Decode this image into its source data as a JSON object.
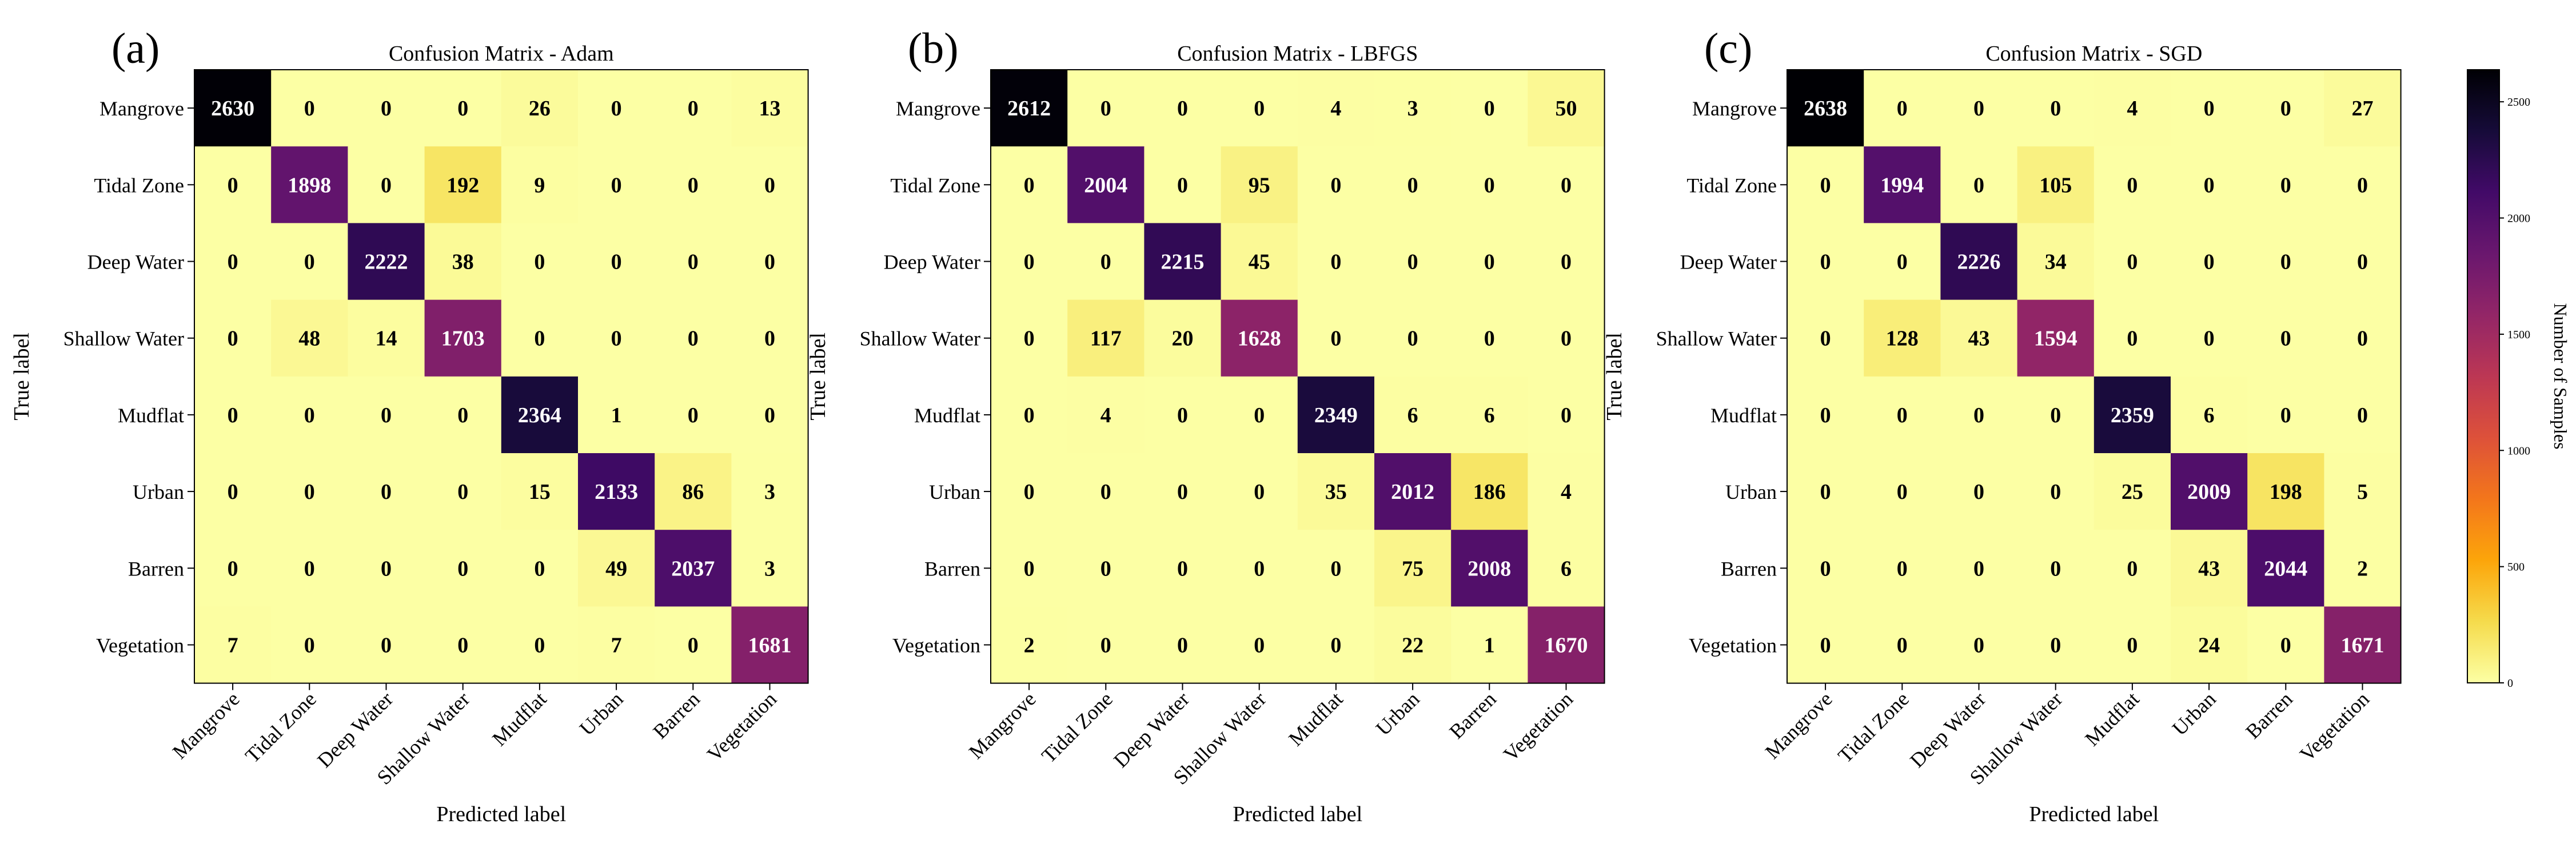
{
  "chart_data": [
    {
      "type": "heatmap",
      "panel_label": "(a)",
      "title": "Confusion Matrix - Adam",
      "xlabel": "Predicted label",
      "ylabel": "True label",
      "row_labels": [
        "Mangrove",
        "Tidal Zone",
        "Deep Water",
        "Shallow Water",
        "Mudflat",
        "Urban",
        "Barren",
        "Vegetation"
      ],
      "col_labels": [
        "Mangrove",
        "Tidal Zone",
        "Deep Water",
        "Shallow Water",
        "Mudflat",
        "Urban",
        "Barren",
        "Vegetation"
      ],
      "matrix": [
        [
          2630,
          0,
          0,
          0,
          26,
          0,
          0,
          13
        ],
        [
          0,
          1898,
          0,
          192,
          9,
          0,
          0,
          0
        ],
        [
          0,
          0,
          2222,
          38,
          0,
          0,
          0,
          0
        ],
        [
          0,
          48,
          14,
          1703,
          0,
          0,
          0,
          0
        ],
        [
          0,
          0,
          0,
          0,
          2364,
          1,
          0,
          0
        ],
        [
          0,
          0,
          0,
          0,
          15,
          2133,
          86,
          3
        ],
        [
          0,
          0,
          0,
          0,
          0,
          49,
          2037,
          3
        ],
        [
          7,
          0,
          0,
          0,
          0,
          7,
          0,
          1681
        ]
      ]
    },
    {
      "type": "heatmap",
      "panel_label": "(b)",
      "title": "Confusion Matrix - LBFGS",
      "xlabel": "Predicted label",
      "ylabel": "True label",
      "row_labels": [
        "Mangrove",
        "Tidal Zone",
        "Deep Water",
        "Shallow Water",
        "Mudflat",
        "Urban",
        "Barren",
        "Vegetation"
      ],
      "col_labels": [
        "Mangrove",
        "Tidal Zone",
        "Deep Water",
        "Shallow Water",
        "Mudflat",
        "Urban",
        "Barren",
        "Vegetation"
      ],
      "matrix": [
        [
          2612,
          0,
          0,
          0,
          4,
          3,
          0,
          50
        ],
        [
          0,
          2004,
          0,
          95,
          0,
          0,
          0,
          0
        ],
        [
          0,
          0,
          2215,
          45,
          0,
          0,
          0,
          0
        ],
        [
          0,
          117,
          20,
          1628,
          0,
          0,
          0,
          0
        ],
        [
          0,
          4,
          0,
          0,
          2349,
          6,
          6,
          0
        ],
        [
          0,
          0,
          0,
          0,
          35,
          2012,
          186,
          4
        ],
        [
          0,
          0,
          0,
          0,
          0,
          75,
          2008,
          6
        ],
        [
          2,
          0,
          0,
          0,
          0,
          22,
          1,
          1670
        ]
      ]
    },
    {
      "type": "heatmap",
      "panel_label": "(c)",
      "title": "Confusion Matrix - SGD",
      "xlabel": "Predicted label",
      "ylabel": "True label",
      "row_labels": [
        "Mangrove",
        "Tidal Zone",
        "Deep Water",
        "Shallow Water",
        "Mudflat",
        "Urban",
        "Barren",
        "Vegetation"
      ],
      "col_labels": [
        "Mangrove",
        "Tidal Zone",
        "Deep Water",
        "Shallow Water",
        "Mudflat",
        "Urban",
        "Barren",
        "Vegetation"
      ],
      "matrix": [
        [
          2638,
          0,
          0,
          0,
          4,
          0,
          0,
          27
        ],
        [
          0,
          1994,
          0,
          105,
          0,
          0,
          0,
          0
        ],
        [
          0,
          0,
          2226,
          34,
          0,
          0,
          0,
          0
        ],
        [
          0,
          128,
          43,
          1594,
          0,
          0,
          0,
          0
        ],
        [
          0,
          0,
          0,
          0,
          2359,
          6,
          0,
          0
        ],
        [
          0,
          0,
          0,
          0,
          25,
          2009,
          198,
          5
        ],
        [
          0,
          0,
          0,
          0,
          0,
          43,
          2044,
          2
        ],
        [
          0,
          0,
          0,
          0,
          0,
          24,
          0,
          1671
        ]
      ]
    }
  ],
  "colorbar": {
    "label": "Number of Samples",
    "vmin": 0,
    "vmax": 2638,
    "ticks": [
      0,
      500,
      1000,
      1500,
      2000,
      2500
    ],
    "colormap": "inferno_r"
  }
}
